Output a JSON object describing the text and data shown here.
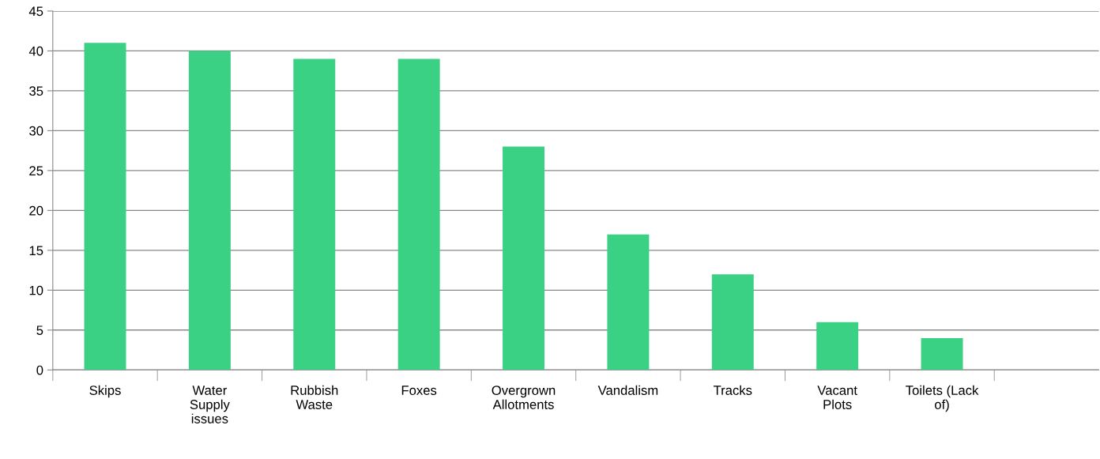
{
  "chart_data": {
    "type": "bar",
    "categories": [
      "Skips",
      "Water\nSupply\nissues",
      "Rubbish\nWaste",
      "Foxes",
      "Overgrown\nAllotments",
      "Vandalism",
      "Tracks",
      "Vacant\nPlots",
      "Toilets (Lack\nof)",
      null
    ],
    "values": [
      41,
      40,
      39,
      39,
      28,
      17,
      12,
      6,
      4,
      null
    ],
    "color": "#3bd184",
    "ylim": [
      0,
      45
    ],
    "yticks": [
      0,
      5,
      10,
      15,
      20,
      25,
      30,
      35,
      40,
      45
    ],
    "grid": "y"
  }
}
